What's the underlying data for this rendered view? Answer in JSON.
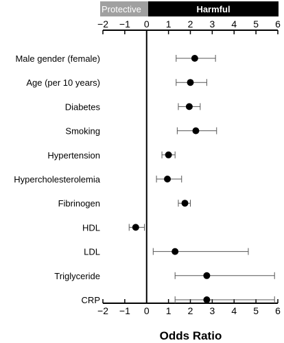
{
  "chart_data": {
    "type": "scatter",
    "subtype": "forest-plot",
    "xlabel": "Odds Ratio",
    "xlim": [
      -2,
      6
    ],
    "xticks": [
      -2,
      -1,
      0,
      1,
      2,
      3,
      4,
      5,
      6
    ],
    "tick_labels": [
      "−2",
      "−1",
      "0",
      "1",
      "2",
      "3",
      "4",
      "5",
      "6"
    ],
    "reference_line": 0,
    "grid": false,
    "legend": "none",
    "banner": {
      "left_label": "Protective",
      "right_label": "Harmful",
      "left_color": "#a0a0a0",
      "right_color": "#000000"
    },
    "categories": [
      "Male gender (female)",
      "Age (per 10 years)",
      "Diabetes",
      "Smoking",
      "Hypertension",
      "Hypercholesterolemia",
      "Fibrinogen",
      "HDL",
      "LDL",
      "Triglyceride",
      "CRP"
    ],
    "estimates": [
      2.2,
      2.0,
      1.95,
      2.25,
      1.0,
      0.95,
      1.75,
      -0.5,
      1.3,
      2.75,
      2.75
    ],
    "ci_lower": [
      1.35,
      1.35,
      1.45,
      1.4,
      0.7,
      0.45,
      1.45,
      -0.8,
      0.3,
      1.3,
      1.3
    ],
    "ci_upper": [
      3.15,
      2.75,
      2.45,
      3.2,
      1.3,
      1.6,
      2.0,
      -0.1,
      4.65,
      5.85,
      5.85
    ]
  }
}
